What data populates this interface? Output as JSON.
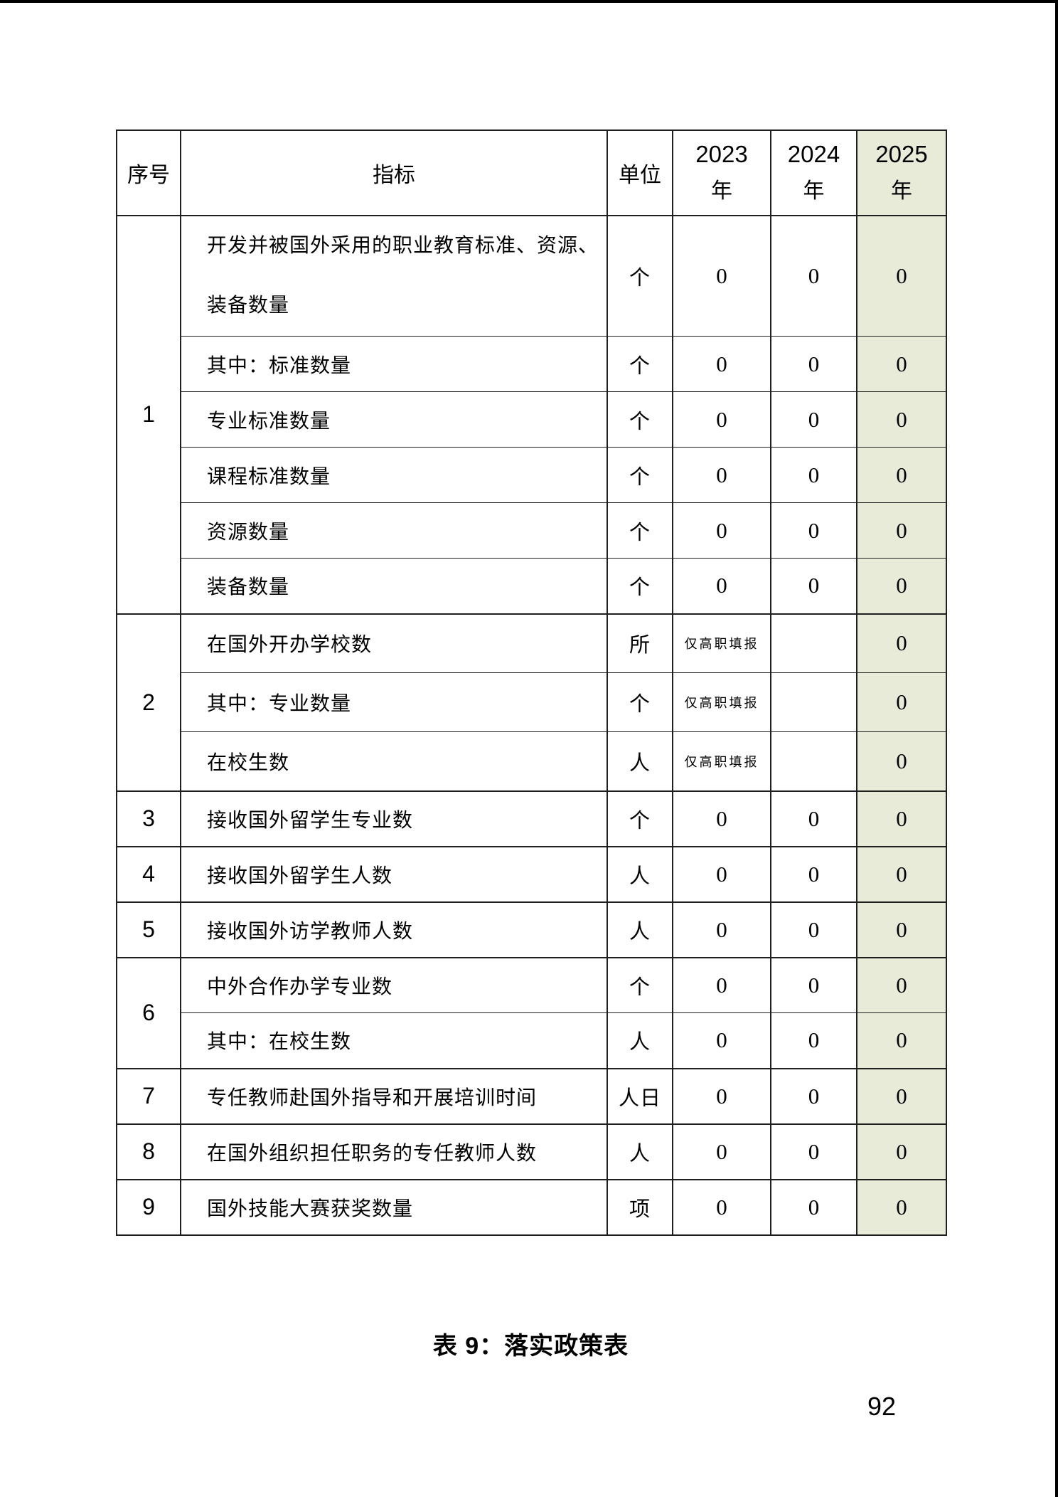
{
  "page": {
    "caption": "表 9：落实政策表",
    "page_number": "92"
  },
  "table": {
    "columns": {
      "seq": "序号",
      "indicator": "指标",
      "unit": "单位"
    },
    "years": [
      {
        "num": "2023",
        "suffix": "年",
        "highlight": false
      },
      {
        "num": "2024",
        "suffix": "年",
        "highlight": false
      },
      {
        "num": "2025",
        "suffix": "年",
        "highlight": true
      }
    ],
    "colors": {
      "highlight_bg": "#e8ebd8",
      "border": "#1f1f1f"
    },
    "note_text": "仅高职填报",
    "rows": [
      {
        "seq": "1",
        "seq_span": 6,
        "kind": "tall",
        "indicator": "开发并被国外采用的职业教育标准、资源、装备数量",
        "unit": "个",
        "values": [
          "0",
          "0",
          "0"
        ]
      },
      {
        "indicator": "其中：标准数量",
        "unit": "个",
        "values": [
          "0",
          "0",
          "0"
        ]
      },
      {
        "indicator": "专业标准数量",
        "unit": "个",
        "values": [
          "0",
          "0",
          "0"
        ]
      },
      {
        "indicator": "课程标准数量",
        "unit": "个",
        "values": [
          "0",
          "0",
          "0"
        ]
      },
      {
        "indicator": "资源数量",
        "unit": "个",
        "values": [
          "0",
          "0",
          "0"
        ]
      },
      {
        "indicator": "装备数量",
        "unit": "个",
        "values": [
          "0",
          "0",
          "0"
        ]
      },
      {
        "seq": "2",
        "seq_span": 3,
        "kind": "mid",
        "indicator": "在国外开办学校数",
        "unit": "所",
        "values": [
          "仅高职填报",
          "",
          "0"
        ],
        "note_col": 0
      },
      {
        "kind": "mid",
        "indicator": "其中：专业数量",
        "unit": "个",
        "values": [
          "仅高职填报",
          "",
          "0"
        ],
        "note_col": 0
      },
      {
        "kind": "mid",
        "indicator": "在校生数",
        "unit": "人",
        "values": [
          "仅高职填报",
          "",
          "0"
        ],
        "note_col": 0
      },
      {
        "seq": "3",
        "seq_span": 1,
        "indicator": "接收国外留学生专业数",
        "unit": "个",
        "values": [
          "0",
          "0",
          "0"
        ]
      },
      {
        "seq": "4",
        "seq_span": 1,
        "indicator": "接收国外留学生人数",
        "unit": "人",
        "values": [
          "0",
          "0",
          "0"
        ]
      },
      {
        "seq": "5",
        "seq_span": 1,
        "indicator": "接收国外访学教师人数",
        "unit": "人",
        "values": [
          "0",
          "0",
          "0"
        ]
      },
      {
        "seq": "6",
        "seq_span": 2,
        "indicator": "中外合作办学专业数",
        "unit": "个",
        "values": [
          "0",
          "0",
          "0"
        ]
      },
      {
        "indicator": "其中：在校生数",
        "unit": "人",
        "values": [
          "0",
          "0",
          "0"
        ]
      },
      {
        "seq": "7",
        "seq_span": 1,
        "indicator": "专任教师赴国外指导和开展培训时间",
        "unit": "人日",
        "values": [
          "0",
          "0",
          "0"
        ]
      },
      {
        "seq": "8",
        "seq_span": 1,
        "indicator": "在国外组织担任职务的专任教师人数",
        "unit": "人",
        "values": [
          "0",
          "0",
          "0"
        ]
      },
      {
        "seq": "9",
        "seq_span": 1,
        "indicator": "国外技能大赛获奖数量",
        "unit": "项",
        "values": [
          "0",
          "0",
          "0"
        ]
      }
    ]
  }
}
